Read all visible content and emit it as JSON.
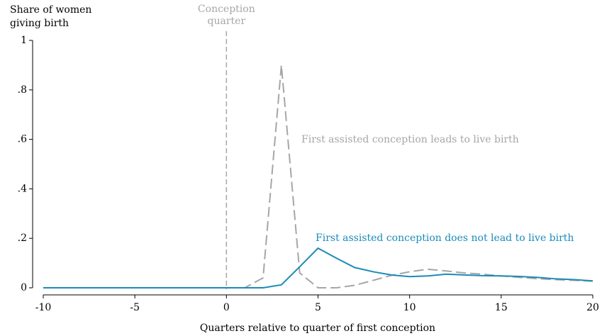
{
  "chart_data": {
    "type": "line",
    "y_label": [
      "Share of women",
      "giving birth"
    ],
    "x_label": "Quarters relative to quarter of first conception",
    "x": [
      -10,
      -9,
      -8,
      -7,
      -6,
      -5,
      -4,
      -3,
      -2,
      -1,
      0,
      1,
      2,
      3,
      4,
      5,
      6,
      7,
      8,
      9,
      10,
      11,
      12,
      13,
      14,
      15,
      16,
      17,
      18,
      19,
      20
    ],
    "series": [
      {
        "name": "First assisted conception leads to live birth",
        "color": "#a6a6a6",
        "dashed": true,
        "values": [
          0,
          0,
          0,
          0,
          0,
          0,
          0,
          0,
          0,
          0,
          0,
          0,
          0.04,
          0.9,
          0.06,
          0,
          0,
          0.01,
          0.03,
          0.05,
          0.065,
          0.075,
          0.068,
          0.06,
          0.055,
          0.048,
          0.042,
          0.037,
          0.033,
          0.03,
          0.027
        ]
      },
      {
        "name": "First assisted conception does not lead to live birth",
        "color": "#1a8bb8",
        "dashed": false,
        "values": [
          0,
          0,
          0,
          0,
          0,
          0,
          0,
          0,
          0,
          0,
          0,
          0,
          0,
          0.012,
          0.085,
          0.16,
          0.12,
          0.082,
          0.065,
          0.052,
          0.045,
          0.048,
          0.055,
          0.052,
          0.049,
          0.048,
          0.046,
          0.042,
          0.036,
          0.033,
          0.028
        ]
      }
    ],
    "annotation": {
      "text": [
        "Conception",
        "quarter"
      ],
      "x": 0,
      "color": "#a6a6a6"
    },
    "xlim": [
      -10,
      20
    ],
    "xticks": [
      -10,
      -5,
      0,
      5,
      10,
      15,
      20
    ],
    "ylim": [
      0,
      1
    ],
    "yticks": [
      0,
      {
        "value": 0.2,
        "label": ".2"
      },
      {
        "value": 0.4,
        "label": ".4"
      },
      {
        "value": 0.6,
        "label": ".6"
      },
      {
        "value": 0.8,
        "label": ".8"
      },
      1
    ]
  }
}
